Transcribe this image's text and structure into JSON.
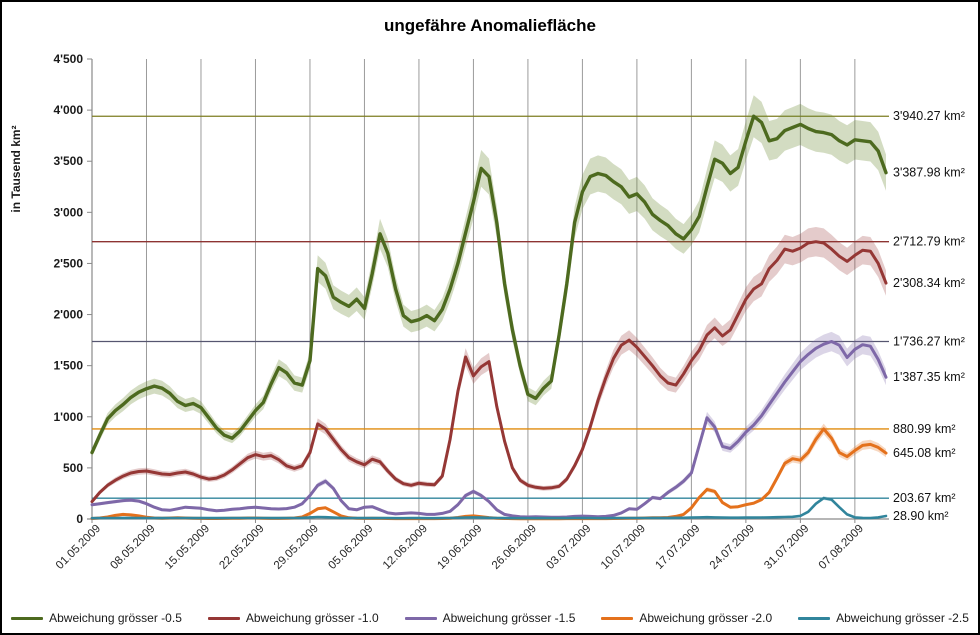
{
  "title": "ungefähre Anomaliefläche",
  "y_axis": {
    "title": "in Tausend  km²",
    "tick_labels": [
      "4'500",
      "4'000",
      "3'500",
      "3'000",
      "2'500",
      "2'000",
      "1'500",
      "1'000",
      "500",
      "0"
    ],
    "min": 0,
    "max": 4500
  },
  "x_axis": {
    "tick_labels": [
      "01.05.2009",
      "08.05.2009",
      "15.05.2009",
      "22.05.2009",
      "29.05.2009",
      "05.06.2009",
      "12.06.2009",
      "19.06.2009",
      "26.06.2009",
      "03.07.2009",
      "10.07.2009",
      "17.07.2009",
      "24.07.2009",
      "31.07.2009",
      "07.08.2009"
    ]
  },
  "legend": [
    {
      "label": "Abweichung grösser -0.5",
      "color": "#4d6a1f"
    },
    {
      "label": "Abweichung grösser -1.0",
      "color": "#953735"
    },
    {
      "label": "Abweichung grösser -1.5",
      "color": "#7e68a8"
    },
    {
      "label": "Abweichung grösser -2.0",
      "color": "#e4711c"
    },
    {
      "label": "Abweichung grösser -2.5",
      "color": "#31859c"
    }
  ],
  "annotations": [
    {
      "text": "3'940.27 km²",
      "value": 3940.27,
      "series": "Abweichung grösser -0.5",
      "kind": "max"
    },
    {
      "text": "3'387.98 km²",
      "value": 3387.98,
      "series": "Abweichung grösser -0.5",
      "kind": "last"
    },
    {
      "text": "2'712.79 km²",
      "value": 2712.79,
      "series": "Abweichung grösser -1.0",
      "kind": "max"
    },
    {
      "text": "2'308.34 km²",
      "value": 2308.34,
      "series": "Abweichung grösser -1.0",
      "kind": "last"
    },
    {
      "text": "1'736.27 km²",
      "value": 1736.27,
      "series": "Abweichung grösser -1.5",
      "kind": "max"
    },
    {
      "text": "1'387.35 km²",
      "value": 1387.35,
      "series": "Abweichung grösser -1.5",
      "kind": "last"
    },
    {
      "text": "880.99 km²",
      "value": 880.99,
      "series": "Abweichung grösser -2.0",
      "kind": "max"
    },
    {
      "text": "645.08 km²",
      "value": 645.08,
      "series": "Abweichung grösser -2.0",
      "kind": "last"
    },
    {
      "text": "203.67 km²",
      "value": 203.67,
      "series": "Abweichung grösser -2.5",
      "kind": "max"
    },
    {
      "text": "28.90 km²",
      "value": 28.9,
      "series": "Abweichung grösser -2.5",
      "kind": "last"
    }
  ],
  "chart_data": {
    "type": "line",
    "x_unit": "day",
    "x_start": "01.05.2009",
    "x_end": "11.08.2009",
    "ylabel": "in Tausend  km²",
    "ylim": [
      0,
      4500
    ],
    "grid": "vertical-weekly",
    "legend_position": "bottom",
    "band": "confidence band ±(5% + 8) around each line",
    "series": [
      {
        "name": "Abweichung grösser -0.5",
        "color": "#4d6a1f",
        "band_color": "rgba(108,140,52,0.30)",
        "ref_color": "#7d7d21",
        "max_value": 3940.27,
        "last_value": 3387.98,
        "values": [
          650,
          820,
          980,
          1060,
          1120,
          1190,
          1240,
          1275,
          1300,
          1280,
          1230,
          1150,
          1110,
          1130,
          1090,
          990,
          890,
          820,
          790,
          860,
          960,
          1060,
          1140,
          1320,
          1480,
          1430,
          1330,
          1310,
          1550,
          2450,
          2380,
          2170,
          2120,
          2080,
          2150,
          2060,
          2400,
          2790,
          2600,
          2250,
          1990,
          1930,
          1950,
          1990,
          1940,
          2050,
          2250,
          2500,
          2800,
          3100,
          3430,
          3350,
          2900,
          2300,
          1850,
          1500,
          1220,
          1180,
          1280,
          1350,
          1800,
          2300,
          2900,
          3200,
          3350,
          3380,
          3360,
          3300,
          3250,
          3150,
          3180,
          3100,
          2980,
          2920,
          2870,
          2790,
          2740,
          2830,
          2960,
          3250,
          3520,
          3480,
          3380,
          3440,
          3700,
          3940,
          3880,
          3700,
          3720,
          3800,
          3830,
          3860,
          3820,
          3790,
          3780,
          3760,
          3700,
          3660,
          3710,
          3700,
          3690,
          3600,
          3388
        ]
      },
      {
        "name": "Abweichung grösser -1.0",
        "color": "#953735",
        "band_color": "rgba(149,55,53,0.26)",
        "ref_color": "#8d3432",
        "max_value": 2712.79,
        "last_value": 2308.34,
        "values": [
          170,
          260,
          330,
          380,
          420,
          450,
          465,
          470,
          455,
          440,
          435,
          450,
          460,
          440,
          410,
          390,
          400,
          430,
          480,
          540,
          600,
          630,
          610,
          620,
          580,
          520,
          495,
          520,
          650,
          930,
          880,
          780,
          680,
          600,
          560,
          530,
          585,
          560,
          470,
          390,
          345,
          330,
          350,
          340,
          335,
          420,
          780,
          1250,
          1585,
          1400,
          1490,
          1540,
          1100,
          760,
          500,
          380,
          330,
          310,
          300,
          305,
          320,
          390,
          520,
          680,
          900,
          1160,
          1380,
          1570,
          1700,
          1750,
          1680,
          1590,
          1500,
          1400,
          1330,
          1310,
          1420,
          1550,
          1650,
          1800,
          1870,
          1790,
          1850,
          2000,
          2150,
          2250,
          2300,
          2450,
          2530,
          2640,
          2620,
          2650,
          2700,
          2713,
          2700,
          2640,
          2570,
          2520,
          2580,
          2630,
          2620,
          2500,
          2308
        ]
      },
      {
        "name": "Abweichung grösser -1.5",
        "color": "#7e68a8",
        "band_color": "rgba(126,104,168,0.28)",
        "ref_color": "#565670",
        "max_value": 1736.27,
        "last_value": 1387.35,
        "values": [
          140,
          150,
          160,
          170,
          180,
          185,
          175,
          150,
          115,
          90,
          85,
          100,
          115,
          110,
          105,
          90,
          80,
          85,
          95,
          100,
          110,
          115,
          108,
          100,
          98,
          102,
          115,
          150,
          230,
          330,
          370,
          300,
          180,
          100,
          90,
          115,
          120,
          90,
          60,
          50,
          55,
          60,
          55,
          45,
          45,
          55,
          75,
          140,
          230,
          270,
          230,
          170,
          90,
          45,
          30,
          22,
          20,
          22,
          20,
          18,
          18,
          20,
          25,
          28,
          25,
          22,
          25,
          35,
          60,
          100,
          95,
          150,
          210,
          200,
          260,
          310,
          370,
          450,
          720,
          990,
          900,
          710,
          690,
          760,
          850,
          920,
          1010,
          1120,
          1230,
          1340,
          1440,
          1540,
          1610,
          1670,
          1710,
          1736,
          1700,
          1580,
          1660,
          1705,
          1690,
          1560,
          1387
        ]
      },
      {
        "name": "Abweichung grösser -2.0",
        "color": "#e4711c",
        "band_color": "rgba(228,113,28,0.28)",
        "ref_color": "#e08b0d",
        "max_value": 880.99,
        "last_value": 645.08,
        "values": [
          5,
          10,
          20,
          35,
          45,
          40,
          30,
          18,
          10,
          8,
          10,
          12,
          10,
          8,
          6,
          5,
          5,
          6,
          8,
          8,
          10,
          10,
          8,
          6,
          6,
          8,
          10,
          20,
          55,
          100,
          110,
          70,
          30,
          12,
          8,
          6,
          8,
          6,
          5,
          4,
          4,
          5,
          4,
          4,
          4,
          5,
          8,
          15,
          25,
          30,
          22,
          14,
          8,
          5,
          4,
          3,
          3,
          3,
          3,
          3,
          3,
          4,
          4,
          5,
          4,
          4,
          4,
          5,
          6,
          8,
          8,
          10,
          12,
          12,
          15,
          25,
          45,
          110,
          210,
          290,
          270,
          160,
          115,
          120,
          140,
          155,
          190,
          260,
          400,
          545,
          590,
          575,
          650,
          780,
          881,
          790,
          650,
          610,
          670,
          720,
          730,
          700,
          645
        ]
      },
      {
        "name": "Abweichung grösser -2.5",
        "color": "#31859c",
        "band_color": "rgba(49,133,156,0.25)",
        "ref_color": "#31859c",
        "max_value": 203.67,
        "last_value": 28.9,
        "values": [
          8,
          9,
          10,
          10,
          11,
          11,
          10,
          10,
          9,
          9,
          10,
          10,
          10,
          9,
          9,
          9,
          9,
          9,
          10,
          10,
          10,
          10,
          10,
          9,
          9,
          10,
          10,
          12,
          16,
          20,
          18,
          14,
          11,
          10,
          9,
          9,
          10,
          9,
          9,
          8,
          8,
          9,
          9,
          8,
          8,
          9,
          10,
          12,
          15,
          16,
          14,
          12,
          10,
          9,
          8,
          8,
          8,
          8,
          8,
          8,
          8,
          8,
          9,
          9,
          9,
          8,
          8,
          9,
          9,
          10,
          10,
          10,
          11,
          11,
          11,
          12,
          12,
          14,
          16,
          18,
          16,
          14,
          13,
          13,
          14,
          14,
          15,
          16,
          18,
          20,
          22,
          30,
          70,
          150,
          204,
          190,
          115,
          45,
          16,
          11,
          10,
          16,
          29
        ]
      }
    ]
  }
}
